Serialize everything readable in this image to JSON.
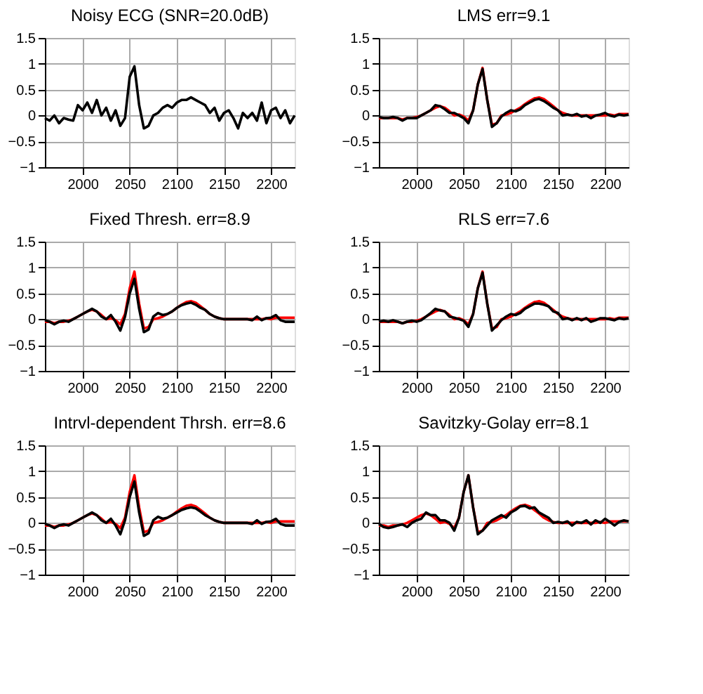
{
  "chart_data": [
    {
      "type": "line",
      "title": "Noisy ECG (SNR=20.0dB)",
      "xlim": [
        1960,
        2225
      ],
      "xticks": [
        2000,
        2050,
        2100,
        2150,
        2200
      ],
      "ylim": [
        -1,
        1.5
      ],
      "yticks": [
        -1,
        -0.5,
        0,
        0.5,
        1,
        1.5
      ],
      "grid": true,
      "x": [
        1960,
        1965,
        1970,
        1975,
        1980,
        1985,
        1990,
        1995,
        2000,
        2005,
        2010,
        2015,
        2020,
        2025,
        2030,
        2035,
        2040,
        2045,
        2050,
        2055,
        2060,
        2065,
        2070,
        2075,
        2080,
        2085,
        2090,
        2095,
        2100,
        2105,
        2110,
        2115,
        2120,
        2125,
        2130,
        2135,
        2140,
        2145,
        2150,
        2155,
        2160,
        2165,
        2170,
        2175,
        2180,
        2185,
        2190,
        2195,
        2200,
        2205,
        2210,
        2215,
        2220,
        2225
      ],
      "series": [
        {
          "color": "#000000",
          "values": [
            -0.05,
            -0.1,
            0.0,
            -0.15,
            -0.05,
            -0.08,
            -0.1,
            0.2,
            0.1,
            0.25,
            0.05,
            0.3,
            0.0,
            0.15,
            -0.1,
            0.1,
            -0.2,
            -0.05,
            0.75,
            0.95,
            0.2,
            -0.25,
            -0.2,
            0.0,
            0.05,
            0.15,
            0.2,
            0.15,
            0.25,
            0.3,
            0.3,
            0.35,
            0.3,
            0.25,
            0.2,
            0.05,
            0.15,
            -0.1,
            0.05,
            0.1,
            -0.05,
            -0.25,
            0.05,
            -0.05,
            0.05,
            -0.1,
            0.25,
            -0.15,
            0.1,
            0.15,
            -0.05,
            0.1,
            -0.15,
            0.0
          ]
        }
      ]
    },
    {
      "type": "line",
      "title": "LMS err=9.1",
      "xlim": [
        1960,
        2225
      ],
      "xticks": [
        2000,
        2050,
        2100,
        2150,
        2200
      ],
      "ylim": [
        -1,
        1.5
      ],
      "yticks": [
        -1,
        -0.5,
        0,
        0.5,
        1,
        1.5
      ],
      "grid": true,
      "x": [
        1960,
        1965,
        1970,
        1975,
        1980,
        1985,
        1990,
        1995,
        2000,
        2005,
        2010,
        2015,
        2020,
        2025,
        2030,
        2035,
        2040,
        2045,
        2050,
        2055,
        2060,
        2065,
        2070,
        2075,
        2080,
        2085,
        2090,
        2095,
        2100,
        2105,
        2110,
        2115,
        2120,
        2125,
        2130,
        2135,
        2140,
        2145,
        2150,
        2155,
        2160,
        2165,
        2170,
        2175,
        2180,
        2185,
        2190,
        2195,
        2200,
        2205,
        2210,
        2215,
        2220,
        2225
      ],
      "series": [
        {
          "color": "#ff0000",
          "values": [
            -0.05,
            -0.05,
            -0.05,
            -0.05,
            -0.05,
            -0.08,
            -0.05,
            -0.05,
            -0.03,
            0.0,
            0.05,
            0.1,
            0.15,
            0.18,
            0.15,
            0.08,
            0.0,
            0.02,
            -0.02,
            -0.1,
            0.1,
            0.6,
            0.92,
            0.3,
            -0.18,
            -0.15,
            0.0,
            0.02,
            0.05,
            0.1,
            0.15,
            0.22,
            0.28,
            0.33,
            0.35,
            0.32,
            0.25,
            0.18,
            0.1,
            0.05,
            0.02,
            0.0,
            0,
            0,
            0,
            0,
            0,
            0,
            0,
            0.02,
            0,
            0.03,
            0.03,
            0.03
          ]
        },
        {
          "color": "#000000",
          "values": [
            -0.03,
            -0.05,
            -0.05,
            -0.03,
            -0.05,
            -0.1,
            -0.05,
            -0.05,
            -0.05,
            0.0,
            0.05,
            0.1,
            0.2,
            0.18,
            0.12,
            0.05,
            0.05,
            0.0,
            -0.05,
            -0.15,
            0.1,
            0.6,
            0.9,
            0.3,
            -0.22,
            -0.15,
            -0.02,
            0.05,
            0.1,
            0.08,
            0.12,
            0.2,
            0.25,
            0.3,
            0.32,
            0.28,
            0.22,
            0.15,
            0.1,
            0.0,
            0.02,
            0.0,
            0.03,
            -0.02,
            0.0,
            -0.05,
            0.0,
            0.02,
            0.05,
            0.0,
            -0.02,
            0.02,
            0.0,
            0.02
          ]
        }
      ]
    },
    {
      "type": "line",
      "title": "Fixed Thresh. err=8.9",
      "xlim": [
        1960,
        2225
      ],
      "xticks": [
        2000,
        2050,
        2100,
        2150,
        2200
      ],
      "ylim": [
        -1,
        1.5
      ],
      "yticks": [
        -1,
        -0.5,
        0,
        0.5,
        1,
        1.5
      ],
      "grid": true,
      "x": [
        1960,
        1965,
        1970,
        1975,
        1980,
        1985,
        1990,
        1995,
        2000,
        2005,
        2010,
        2015,
        2020,
        2025,
        2030,
        2035,
        2040,
        2045,
        2050,
        2055,
        2060,
        2065,
        2070,
        2075,
        2080,
        2085,
        2090,
        2095,
        2100,
        2105,
        2110,
        2115,
        2120,
        2125,
        2130,
        2135,
        2140,
        2145,
        2150,
        2155,
        2160,
        2165,
        2170,
        2175,
        2180,
        2185,
        2190,
        2195,
        2200,
        2205,
        2210,
        2215,
        2220,
        2225
      ],
      "series": [
        {
          "color": "#ff0000",
          "values": [
            -0.05,
            -0.05,
            -0.08,
            -0.05,
            -0.05,
            -0.03,
            0.0,
            0.05,
            0.1,
            0.15,
            0.18,
            0.15,
            0.08,
            0.0,
            0.02,
            -0.02,
            -0.1,
            0.1,
            0.6,
            0.92,
            0.3,
            -0.18,
            -0.15,
            0.0,
            0.02,
            0.05,
            0.1,
            0.15,
            0.22,
            0.28,
            0.33,
            0.35,
            0.32,
            0.25,
            0.18,
            0.1,
            0.05,
            0.02,
            0.0,
            0,
            0,
            0,
            0,
            0,
            0,
            0,
            0,
            0.02,
            0,
            0.03,
            0.03,
            0.03,
            0.03,
            0.03
          ]
        },
        {
          "color": "#000000",
          "values": [
            -0.02,
            -0.05,
            -0.1,
            -0.05,
            -0.03,
            -0.05,
            0.0,
            0.05,
            0.1,
            0.15,
            0.2,
            0.15,
            0.05,
            0.0,
            0.08,
            -0.05,
            -0.22,
            0.05,
            0.5,
            0.78,
            0.2,
            -0.25,
            -0.2,
            0.05,
            0.12,
            0.08,
            0.1,
            0.15,
            0.22,
            0.27,
            0.3,
            0.32,
            0.28,
            0.22,
            0.18,
            0.1,
            0.05,
            0.02,
            0.0,
            0,
            0,
            0,
            0,
            0,
            -0.02,
            0.05,
            -0.02,
            0.02,
            0.03,
            0.08,
            -0.02,
            -0.05,
            -0.05,
            -0.05
          ]
        }
      ]
    },
    {
      "type": "line",
      "title": "RLS err=7.6",
      "xlim": [
        1960,
        2225
      ],
      "xticks": [
        2000,
        2050,
        2100,
        2150,
        2200
      ],
      "ylim": [
        -1,
        1.5
      ],
      "yticks": [
        -1,
        -0.5,
        0,
        0.5,
        1,
        1.5
      ],
      "grid": true,
      "x": [
        1960,
        1965,
        1970,
        1975,
        1980,
        1985,
        1990,
        1995,
        2000,
        2005,
        2010,
        2015,
        2020,
        2025,
        2030,
        2035,
        2040,
        2045,
        2050,
        2055,
        2060,
        2065,
        2070,
        2075,
        2080,
        2085,
        2090,
        2095,
        2100,
        2105,
        2110,
        2115,
        2120,
        2125,
        2130,
        2135,
        2140,
        2145,
        2150,
        2155,
        2160,
        2165,
        2170,
        2175,
        2180,
        2185,
        2190,
        2195,
        2200,
        2205,
        2210,
        2215,
        2220,
        2225
      ],
      "series": [
        {
          "color": "#ff0000",
          "values": [
            -0.05,
            -0.05,
            -0.05,
            -0.05,
            -0.05,
            -0.08,
            -0.05,
            -0.05,
            -0.03,
            0.0,
            0.05,
            0.1,
            0.15,
            0.18,
            0.15,
            0.08,
            0.0,
            0.02,
            -0.02,
            -0.1,
            0.1,
            0.6,
            0.92,
            0.3,
            -0.18,
            -0.15,
            0.0,
            0.02,
            0.05,
            0.1,
            0.15,
            0.22,
            0.28,
            0.33,
            0.35,
            0.32,
            0.25,
            0.18,
            0.1,
            0.05,
            0.02,
            0.0,
            0,
            0,
            0,
            0,
            0,
            0,
            0,
            0.02,
            0,
            0.03,
            0.03,
            0.03
          ]
        },
        {
          "color": "#000000",
          "values": [
            -0.05,
            -0.03,
            -0.05,
            -0.02,
            -0.05,
            -0.08,
            -0.05,
            -0.03,
            -0.05,
            -0.02,
            0.05,
            0.12,
            0.2,
            0.17,
            0.15,
            0.05,
            0.03,
            0.0,
            -0.03,
            -0.15,
            0.1,
            0.6,
            0.9,
            0.3,
            -0.22,
            -0.12,
            -0.02,
            0.05,
            0.1,
            0.08,
            0.12,
            0.2,
            0.25,
            0.3,
            0.3,
            0.28,
            0.25,
            0.15,
            0.12,
            0.0,
            0.02,
            -0.02,
            0.02,
            -0.02,
            0.02,
            -0.05,
            -0.02,
            0.02,
            0.02,
            0.0,
            -0.02,
            0.02,
            0.0,
            0.02
          ]
        }
      ]
    },
    {
      "type": "line",
      "title": "Intrvl-dependent Thrsh. err=8.6",
      "xlim": [
        1960,
        2225
      ],
      "xticks": [
        2000,
        2050,
        2100,
        2150,
        2200
      ],
      "ylim": [
        -1,
        1.5
      ],
      "yticks": [
        -1,
        -0.5,
        0,
        0.5,
        1,
        1.5
      ],
      "grid": true,
      "x": [
        1960,
        1965,
        1970,
        1975,
        1980,
        1985,
        1990,
        1995,
        2000,
        2005,
        2010,
        2015,
        2020,
        2025,
        2030,
        2035,
        2040,
        2045,
        2050,
        2055,
        2060,
        2065,
        2070,
        2075,
        2080,
        2085,
        2090,
        2095,
        2100,
        2105,
        2110,
        2115,
        2120,
        2125,
        2130,
        2135,
        2140,
        2145,
        2150,
        2155,
        2160,
        2165,
        2170,
        2175,
        2180,
        2185,
        2190,
        2195,
        2200,
        2205,
        2210,
        2215,
        2220,
        2225
      ],
      "series": [
        {
          "color": "#ff0000",
          "values": [
            -0.05,
            -0.05,
            -0.08,
            -0.05,
            -0.05,
            -0.03,
            0.0,
            0.05,
            0.1,
            0.15,
            0.18,
            0.15,
            0.08,
            0.0,
            0.02,
            -0.02,
            -0.1,
            0.1,
            0.6,
            0.92,
            0.3,
            -0.18,
            -0.15,
            0.0,
            0.02,
            0.05,
            0.1,
            0.15,
            0.22,
            0.28,
            0.33,
            0.35,
            0.32,
            0.25,
            0.18,
            0.1,
            0.05,
            0.02,
            0.0,
            0,
            0,
            0,
            0,
            0,
            0,
            0,
            0,
            0.02,
            0,
            0.03,
            0.03,
            0.03,
            0.03,
            0.03
          ]
        },
        {
          "color": "#000000",
          "values": [
            -0.02,
            -0.05,
            -0.1,
            -0.05,
            -0.03,
            -0.05,
            0.0,
            0.05,
            0.1,
            0.15,
            0.2,
            0.15,
            0.05,
            0.0,
            0.08,
            -0.05,
            -0.22,
            0.05,
            0.5,
            0.8,
            0.2,
            -0.25,
            -0.2,
            0.05,
            0.12,
            0.08,
            0.1,
            0.15,
            0.2,
            0.25,
            0.28,
            0.3,
            0.28,
            0.22,
            0.15,
            0.1,
            0.05,
            0.02,
            0.0,
            0,
            0,
            0,
            0,
            0,
            -0.02,
            0.05,
            -0.02,
            0.02,
            0.03,
            0.08,
            -0.02,
            -0.05,
            -0.05,
            -0.05
          ]
        }
      ]
    },
    {
      "type": "line",
      "title": "Savitzky-Golay err=8.1",
      "xlim": [
        1960,
        2225
      ],
      "xticks": [
        2000,
        2050,
        2100,
        2150,
        2200
      ],
      "ylim": [
        -1,
        1.5
      ],
      "yticks": [
        -1,
        -0.5,
        0,
        0.5,
        1,
        1.5
      ],
      "grid": true,
      "x": [
        1960,
        1965,
        1970,
        1975,
        1980,
        1985,
        1990,
        1995,
        2000,
        2005,
        2010,
        2015,
        2020,
        2025,
        2030,
        2035,
        2040,
        2045,
        2050,
        2055,
        2060,
        2065,
        2070,
        2075,
        2080,
        2085,
        2090,
        2095,
        2100,
        2105,
        2110,
        2115,
        2120,
        2125,
        2130,
        2135,
        2140,
        2145,
        2150,
        2155,
        2160,
        2165,
        2170,
        2175,
        2180,
        2185,
        2190,
        2195,
        2200,
        2205,
        2210,
        2215,
        2220,
        2225
      ],
      "series": [
        {
          "color": "#ff0000",
          "values": [
            -0.05,
            -0.05,
            -0.08,
            -0.05,
            -0.05,
            -0.03,
            0.0,
            0.05,
            0.1,
            0.15,
            0.18,
            0.15,
            0.08,
            0.0,
            0.02,
            -0.02,
            -0.1,
            0.1,
            0.6,
            0.92,
            0.3,
            -0.18,
            -0.15,
            0.0,
            0.02,
            0.05,
            0.1,
            0.15,
            0.22,
            0.28,
            0.33,
            0.35,
            0.32,
            0.25,
            0.18,
            0.1,
            0.05,
            0.02,
            0.0,
            0,
            0,
            0,
            0,
            0,
            0,
            0,
            0,
            0.02,
            0,
            0.03,
            0.03,
            0.03,
            0.03,
            0.03
          ]
        },
        {
          "color": "#000000",
          "values": [
            -0.02,
            -0.08,
            -0.1,
            -0.08,
            -0.05,
            -0.03,
            -0.08,
            0.0,
            0.05,
            0.08,
            0.2,
            0.15,
            0.15,
            0.05,
            0.05,
            0.0,
            -0.15,
            0.1,
            0.6,
            0.92,
            0.3,
            -0.22,
            -0.15,
            -0.05,
            0.05,
            0.1,
            0.15,
            0.1,
            0.2,
            0.25,
            0.32,
            0.33,
            0.28,
            0.3,
            0.2,
            0.15,
            0.1,
            0.0,
            0.02,
            0.0,
            0.03,
            -0.05,
            0.02,
            0.0,
            0.05,
            -0.03,
            0.05,
            0.0,
            0.08,
            0.02,
            -0.05,
            0.02,
            0.05,
            0.03
          ]
        }
      ]
    }
  ]
}
